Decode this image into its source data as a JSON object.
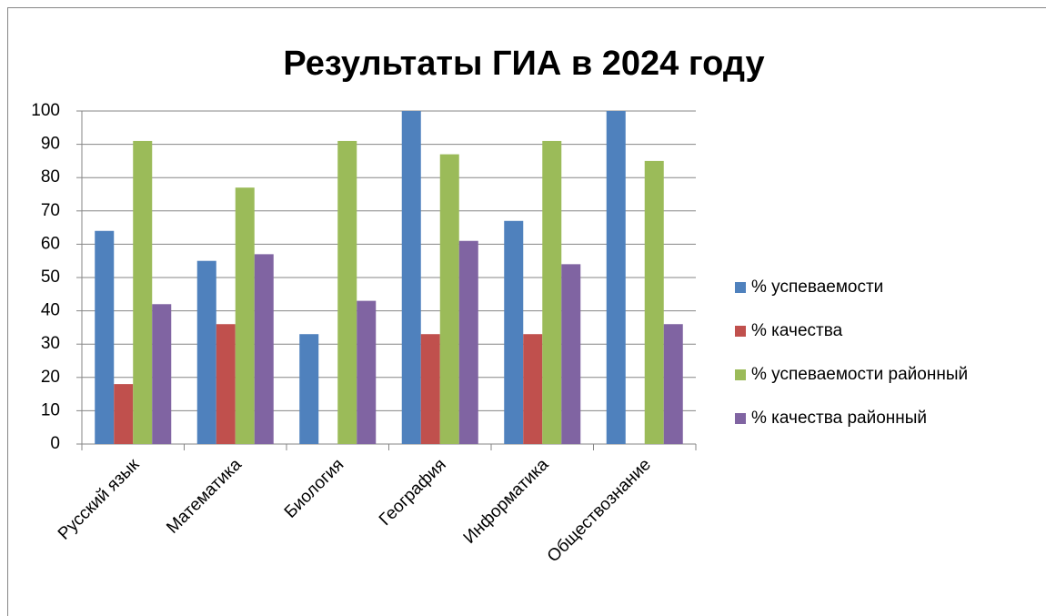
{
  "chart_data": {
    "type": "bar",
    "title": "Результаты ГИА в 2024 году",
    "categories": [
      "Русский язык",
      "Математика",
      "Биология",
      "География",
      "Информатика",
      "Обществознание"
    ],
    "series": [
      {
        "name": "% успеваемости",
        "color": "#4f81bd",
        "values": [
          64,
          55,
          33,
          100,
          67,
          100
        ]
      },
      {
        "name": "% качества",
        "color": "#c0504d",
        "values": [
          18,
          36,
          null,
          33,
          33,
          null
        ]
      },
      {
        "name": "% успеваемости районный",
        "color": "#9bbb59",
        "values": [
          91,
          77,
          91,
          87,
          91,
          85
        ]
      },
      {
        "name": "% качества районный",
        "color": "#8064a2",
        "values": [
          42,
          57,
          43,
          61,
          54,
          36
        ]
      }
    ],
    "ylim": [
      0,
      100
    ],
    "yticks": [
      0,
      10,
      20,
      30,
      40,
      50,
      60,
      70,
      80,
      90,
      100
    ],
    "grid": true,
    "legend": "right"
  }
}
